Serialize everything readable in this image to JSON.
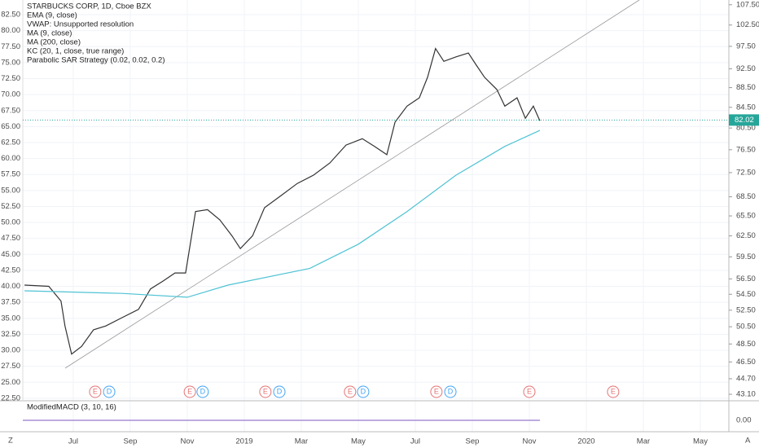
{
  "chart_data": {
    "type": "line",
    "legend_lines": [
      "STARBUCKS CORP, 1D, Cboe BZX",
      "EMA (9, close)",
      "VWAP: Unsupported resolution",
      "MA (9, close)",
      "MA (200, close)",
      "KC (20, 1, close, true range)",
      "Parabolic SAR Strategy (0.02, 0.02, 0.2)"
    ],
    "xlim": [
      -1.57,
      24
    ],
    "xticks": [
      {
        "value": 1,
        "label": "Jul"
      },
      {
        "value": 3,
        "label": "Sep"
      },
      {
        "value": 5,
        "label": "Nov"
      },
      {
        "value": 7,
        "label": "2019"
      },
      {
        "value": 9,
        "label": "Mar"
      },
      {
        "value": 11,
        "label": "May"
      },
      {
        "value": 13,
        "label": "Jul"
      },
      {
        "value": 15,
        "label": "Sep"
      },
      {
        "value": 17,
        "label": "Nov"
      },
      {
        "value": 19,
        "label": "2020"
      },
      {
        "value": 21,
        "label": "Mar"
      },
      {
        "value": 23,
        "label": "May"
      }
    ],
    "ylim": [
      22.1,
      84.8
    ],
    "yticks": [
      {
        "value": 22.5,
        "label": "22.50"
      },
      {
        "value": 25,
        "label": "25.00"
      },
      {
        "value": 27.5,
        "label": "27.50"
      },
      {
        "value": 30,
        "label": "30.00"
      },
      {
        "value": 32.5,
        "label": "32.50"
      },
      {
        "value": 35,
        "label": "35.00"
      },
      {
        "value": 37.5,
        "label": "37.50"
      },
      {
        "value": 40,
        "label": "40.00"
      },
      {
        "value": 42.5,
        "label": "42.50"
      },
      {
        "value": 45,
        "label": "45.00"
      },
      {
        "value": 47.5,
        "label": "47.50"
      },
      {
        "value": 50,
        "label": "50.00"
      },
      {
        "value": 52.5,
        "label": "52.50"
      },
      {
        "value": 55,
        "label": "55.00"
      },
      {
        "value": 57.5,
        "label": "57.50"
      },
      {
        "value": 60,
        "label": "60.00"
      },
      {
        "value": 62.5,
        "label": "62.50"
      },
      {
        "value": 65,
        "label": "65.00"
      },
      {
        "value": 67.5,
        "label": "67.50"
      },
      {
        "value": 70,
        "label": "70.00"
      },
      {
        "value": 72.5,
        "label": "72.50"
      },
      {
        "value": 75,
        "label": "75.00"
      },
      {
        "value": 77.5,
        "label": "77.50"
      },
      {
        "value": 80,
        "label": "80.00"
      },
      {
        "value": 82.5,
        "label": "82.50"
      }
    ],
    "y2lim": [
      42.45,
      108.7
    ],
    "y2log": true,
    "y2ticks": [
      {
        "value": 107.5,
        "label": "107.50"
      },
      {
        "value": 102.5,
        "label": "102.50"
      },
      {
        "value": 97.5,
        "label": "97.50"
      },
      {
        "value": 92.5,
        "label": "92.50"
      },
      {
        "value": 88.5,
        "label": "88.50"
      },
      {
        "value": 84.5,
        "label": "84.50"
      },
      {
        "value": 80.5,
        "label": "80.50"
      },
      {
        "value": 76.5,
        "label": "76.50"
      },
      {
        "value": 72.5,
        "label": "72.50"
      },
      {
        "value": 68.5,
        "label": "68.50"
      },
      {
        "value": 65.5,
        "label": "65.50"
      },
      {
        "value": 62.5,
        "label": "62.50"
      },
      {
        "value": 59.5,
        "label": "59.50"
      },
      {
        "value": 56.5,
        "label": "56.50"
      },
      {
        "value": 54.5,
        "label": "54.50"
      },
      {
        "value": 52.5,
        "label": "52.50"
      },
      {
        "value": 50.5,
        "label": "50.50"
      },
      {
        "value": 48.5,
        "label": "48.50"
      },
      {
        "value": 46.5,
        "label": "46.50"
      },
      {
        "value": 44.7,
        "label": "44.70"
      },
      {
        "value": 43.1,
        "label": "43.10"
      }
    ],
    "last_price": {
      "value": 82.02,
      "label": "82.02",
      "color": "#26a69a"
    },
    "grid": true,
    "series": [
      {
        "color": "#333333",
        "x": [
          -0.71,
          0.14,
          0.57,
          0.71,
          0.94,
          1.29,
          1.71,
          2.14,
          2.71,
          3.29,
          3.71,
          4.14,
          4.57,
          4.94,
          5.29,
          5.71,
          6.14,
          6.57,
          6.86,
          7.29,
          7.71,
          8.29,
          8.86,
          9.43,
          10,
          10.57,
          11.14,
          11.57,
          12,
          12.29,
          12.71,
          13.14,
          13.43,
          13.71,
          14,
          14.43,
          14.86,
          15.14,
          15.43,
          15.86,
          16.14,
          16.57,
          16.86,
          17.14,
          17.37
        ],
        "values": [
          40.2,
          40,
          37.7,
          33.8,
          29.4,
          30.6,
          33.2,
          33.8,
          35.1,
          36.4,
          39.6,
          40.8,
          42.1,
          42.1,
          51.7,
          52,
          50.4,
          47.9,
          45.9,
          47.9,
          52.3,
          54.2,
          56.1,
          57.4,
          59.3,
          62.1,
          63.1,
          61.9,
          60.6,
          65.7,
          68.2,
          69.5,
          72.7,
          77.2,
          75.2,
          75.9,
          76.5,
          74.6,
          72.7,
          70.8,
          68.2,
          69.5,
          66.3,
          68.2,
          65.9
        ]
      },
      {
        "color": "#4fc3d4",
        "x": [
          -0.71,
          2.71,
          5,
          6.43,
          9.29,
          11,
          12.71,
          14.43,
          16.14,
          17.37
        ],
        "values": [
          39.3,
          38.9,
          38.3,
          40.2,
          42.8,
          46.6,
          51.7,
          57.4,
          61.9,
          64.4
        ]
      }
    ],
    "events": [
      {
        "label": "E",
        "x": 1.77
      },
      {
        "label": "D",
        "x": 2.26
      },
      {
        "label": "E",
        "x": 5.09
      },
      {
        "label": "D",
        "x": 5.54
      },
      {
        "label": "E",
        "x": 7.74
      },
      {
        "label": "D",
        "x": 8.23
      },
      {
        "label": "E",
        "x": 10.71
      },
      {
        "label": "D",
        "x": 11.17
      },
      {
        "label": "E",
        "x": 13.74
      },
      {
        "label": "D",
        "x": 14.23
      },
      {
        "label": "E",
        "x": 17
      },
      {
        "label": "E",
        "x": 19.94
      }
    ],
    "macd": {
      "title": "ModifiedMACD (3, 10, 16)",
      "ticks": [
        {
          "value": 0,
          "label": "0.00"
        }
      ]
    },
    "corner_left": "Z",
    "corner_right": "A"
  }
}
